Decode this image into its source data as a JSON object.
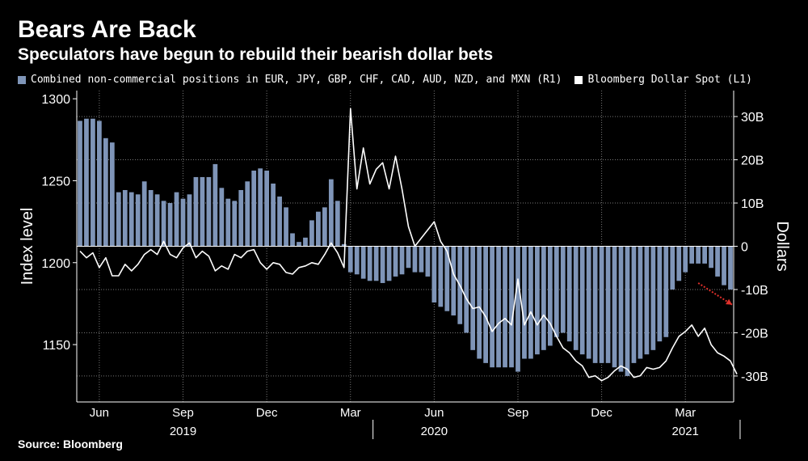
{
  "chart_data": {
    "type": "bar+line",
    "title": "Bears Are Back",
    "subtitle": "Speculators have begun to rebuild their bearish dollar bets",
    "source": "Source: Bloomberg",
    "left_axis_label": "Index level",
    "right_axis_label": "Dollars",
    "left_ylim": [
      1115,
      1305
    ],
    "right_ylim": [
      -36,
      36
    ],
    "left_ticks": [
      1150,
      1200,
      1250,
      1300
    ],
    "right_ticks": [
      30,
      20,
      10,
      0,
      -10,
      -20,
      -30
    ],
    "right_tick_labels": [
      "30B",
      "20B",
      "10B",
      "0",
      "-10B",
      "-20B",
      "-30B"
    ],
    "month_labels": [
      {
        "label": "Jun",
        "week": 3
      },
      {
        "label": "Sep",
        "week": 16
      },
      {
        "label": "Dec",
        "week": 29
      },
      {
        "label": "Mar",
        "week": 42
      },
      {
        "label": "Jun",
        "week": 55
      },
      {
        "label": "Sep",
        "week": 68
      },
      {
        "label": "Dec",
        "week": 81
      },
      {
        "label": "Mar",
        "week": 94
      }
    ],
    "year_labels": [
      {
        "label": "2019",
        "week": 16
      },
      {
        "label": "2020",
        "week": 55
      },
      {
        "label": "2021",
        "week": 94
      }
    ],
    "year_separators": [
      46,
      103
    ],
    "series": [
      {
        "name": "Combined non-commercial positions in EUR, JPY, GBP, CHF, CAD, AUD, NZD, and MXN (R1)",
        "kind": "bar",
        "axis": "right",
        "color": "#7f95b8",
        "unit": "USD billions",
        "values": [
          29,
          29.5,
          29.5,
          29,
          25,
          24,
          12.5,
          13,
          12.5,
          12,
          15,
          13,
          12,
          10.5,
          10,
          12.5,
          11,
          12,
          16,
          16,
          16,
          19,
          13.5,
          11,
          10.5,
          13,
          15,
          17.5,
          18,
          17.5,
          14.5,
          11.5,
          9,
          3,
          1,
          2,
          6,
          8,
          9,
          15.5,
          10.5,
          0.5,
          -6,
          -6.5,
          -7.5,
          -8,
          -8,
          -8.5,
          -8,
          -7,
          -6.5,
          -5,
          -6,
          -6,
          -7,
          -13,
          -14,
          -15,
          -16,
          -18,
          -20,
          -24,
          -26,
          -27,
          -28,
          -28,
          -28,
          -28,
          -29,
          -26,
          -26,
          -25,
          -24,
          -23,
          -21,
          -20,
          -22,
          -24,
          -25,
          -26,
          -27,
          -27,
          -27,
          -28,
          -29,
          -30,
          -27,
          -26,
          -25,
          -24,
          -22,
          -21,
          -10,
          -8,
          -6,
          -4,
          -4,
          -4,
          -5,
          -7,
          -9,
          -10
        ]
      },
      {
        "name": "Bloomberg Dollar Spot (L1)",
        "kind": "line",
        "axis": "left",
        "color": "#ffffff",
        "unit": "index level",
        "values": [
          1207,
          1203,
          1206,
          1197,
          1203,
          1192,
          1192,
          1199,
          1195,
          1199,
          1205,
          1208,
          1205,
          1213,
          1205,
          1203,
          1209,
          1212,
          1203,
          1207,
          1204,
          1195,
          1198,
          1196,
          1205,
          1203,
          1207,
          1208,
          1200,
          1196,
          1200,
          1199,
          1194,
          1193,
          1197,
          1198,
          1200,
          1199,
          1205,
          1212,
          1206,
          1197,
          1294,
          1245,
          1270,
          1248,
          1257,
          1261,
          1245,
          1265,
          1245,
          1222,
          1210,
          1215,
          1220,
          1225,
          1213,
          1207,
          1193,
          1186,
          1178,
          1172,
          1173,
          1167,
          1158,
          1163,
          1166,
          1162,
          1190,
          1162,
          1170,
          1162,
          1168,
          1163,
          1155,
          1148,
          1145,
          1140,
          1137,
          1130,
          1131,
          1128,
          1130,
          1134,
          1137,
          1135,
          1130,
          1131,
          1136,
          1135,
          1136,
          1140,
          1148,
          1155,
          1158,
          1162,
          1155,
          1160,
          1150,
          1145,
          1143,
          1140,
          1132
        ]
      }
    ]
  }
}
